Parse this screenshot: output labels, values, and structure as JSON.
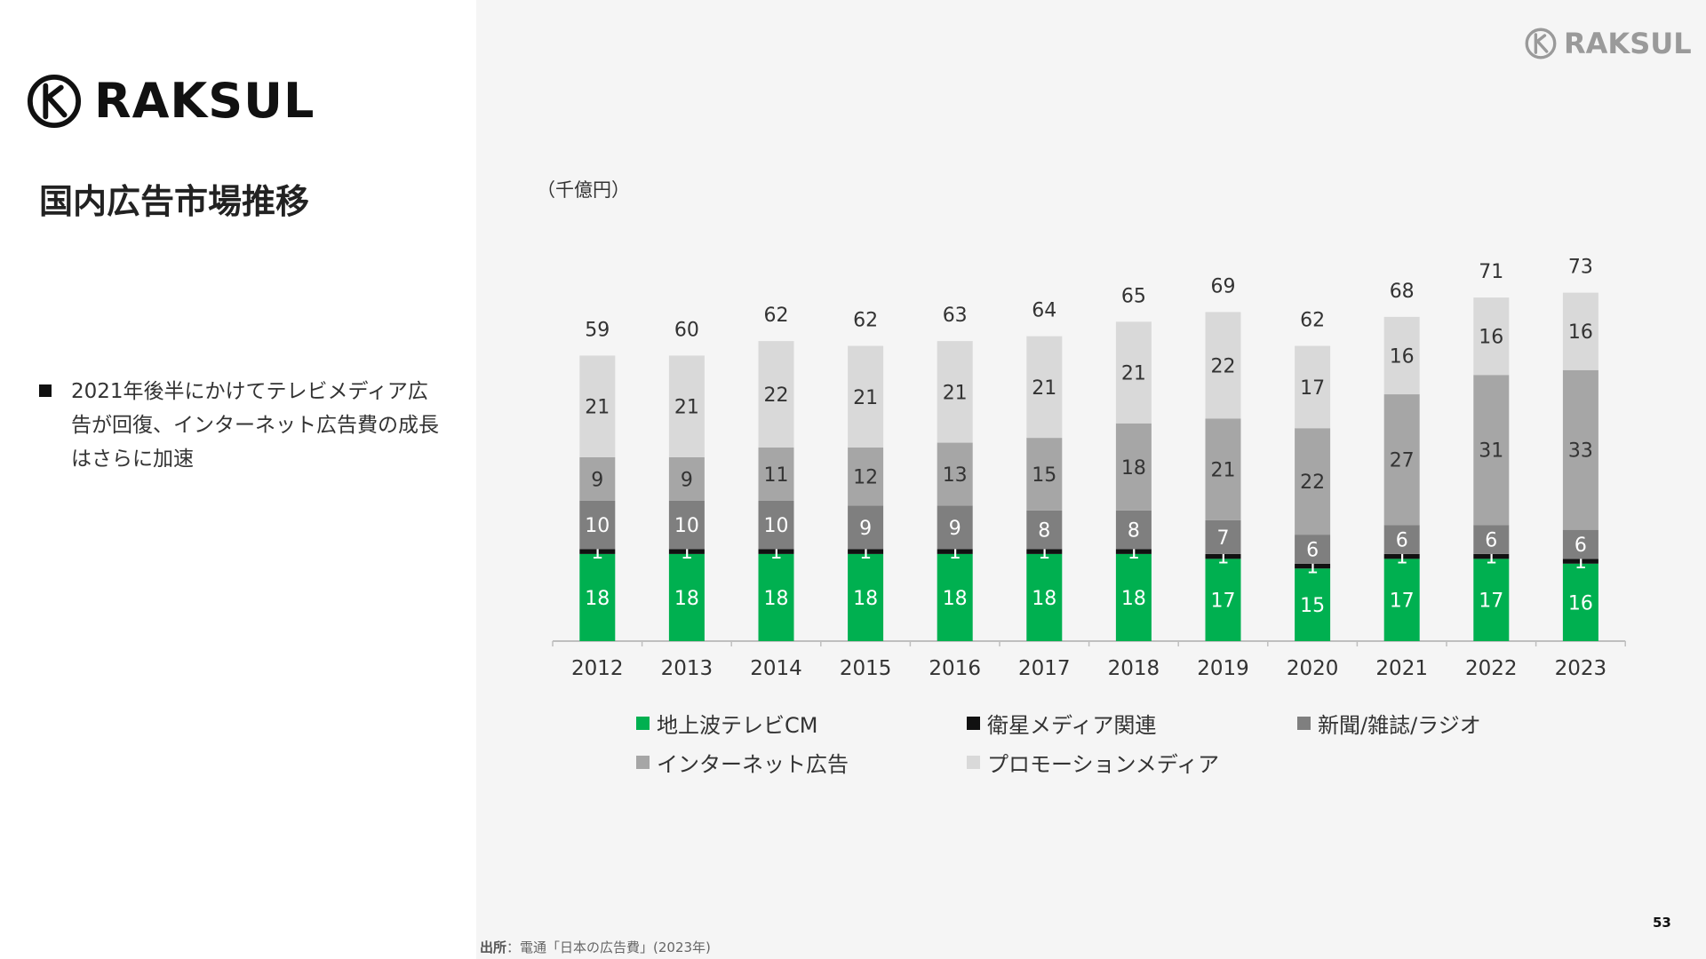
{
  "brand": {
    "name": "RAKSUL"
  },
  "page": {
    "title": "国内広告市場推移",
    "bullet": "2021年後半にかけてテレビメディア広告が回復、インターネット広告費の成長はさらに加速",
    "unit": "（千億円）",
    "source_label": "出所",
    "source_text": "：電通「日本の広告費」(2023年)",
    "page_number": "53"
  },
  "colors": {
    "terrestrial_tv": "#00b050",
    "satellite": "#111111",
    "print_radio": "#7f7f7f",
    "internet": "#a6a6a6",
    "promotion": "#d9d9d9"
  },
  "chart_data": {
    "type": "bar",
    "stacked": true,
    "categories": [
      "2012",
      "2013",
      "2014",
      "2015",
      "2016",
      "2017",
      "2018",
      "2019",
      "2020",
      "2021",
      "2022",
      "2023"
    ],
    "series": [
      {
        "name": "地上波テレビCM",
        "values": [
          18,
          18,
          18,
          18,
          18,
          18,
          18,
          17,
          15,
          17,
          17,
          16
        ]
      },
      {
        "name": "衛星メディア関連",
        "values": [
          1,
          1,
          1,
          1,
          1,
          1,
          1,
          1,
          1,
          1,
          1,
          1
        ]
      },
      {
        "name": "新聞/雑誌/ラジオ",
        "values": [
          10,
          10,
          10,
          9,
          9,
          8,
          8,
          7,
          6,
          6,
          6,
          6
        ]
      },
      {
        "name": "インターネット広告",
        "values": [
          9,
          9,
          11,
          12,
          13,
          15,
          18,
          21,
          22,
          27,
          31,
          33
        ]
      },
      {
        "name": "プロモーションメディア",
        "values": [
          21,
          21,
          22,
          21,
          21,
          21,
          21,
          22,
          17,
          16,
          16,
          16
        ]
      }
    ],
    "totals": [
      59,
      60,
      62,
      62,
      63,
      64,
      65,
      69,
      62,
      68,
      71,
      73
    ],
    "legend_position": "bottom",
    "grid": false
  }
}
